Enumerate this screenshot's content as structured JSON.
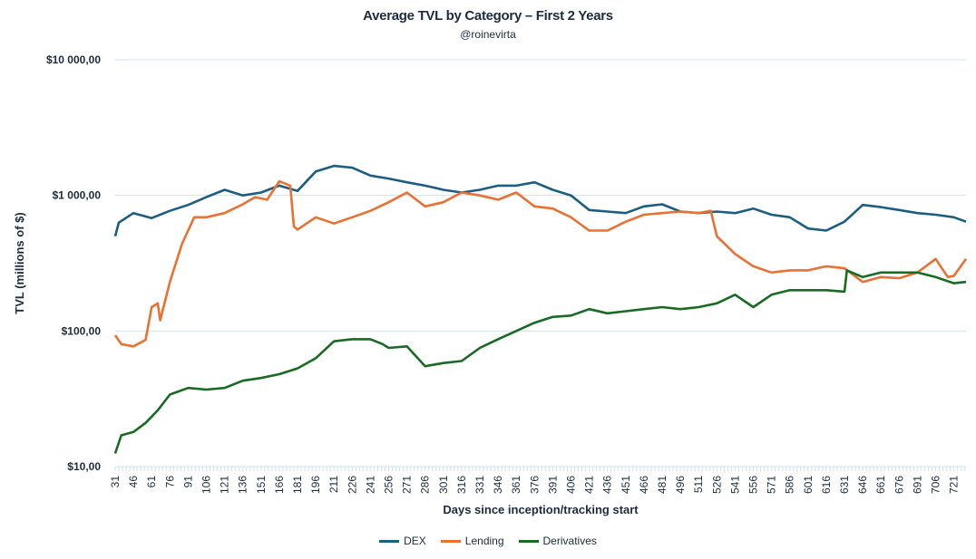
{
  "chart_data": {
    "type": "line",
    "title": "Average TVL by Category – First 2 Years",
    "subtitle": "@roinevirta",
    "xlabel": "Days since inception/tracking start",
    "ylabel": "TVL (millions of $)",
    "yscale": "log",
    "ylim": [
      10,
      10000
    ],
    "xlim": [
      31,
      731
    ],
    "y_ticks": [
      {
        "v": 10000,
        "label": "$10 000,00"
      },
      {
        "v": 1000,
        "label": "$1 000,00"
      },
      {
        "v": 100,
        "label": "$100,00"
      },
      {
        "v": 10,
        "label": "$10,00"
      }
    ],
    "x_ticks": [
      31,
      46,
      61,
      76,
      91,
      106,
      121,
      136,
      151,
      166,
      181,
      196,
      211,
      226,
      241,
      256,
      271,
      286,
      301,
      316,
      331,
      346,
      361,
      376,
      391,
      406,
      421,
      436,
      451,
      466,
      481,
      496,
      511,
      526,
      541,
      556,
      571,
      586,
      601,
      616,
      631,
      646,
      661,
      676,
      691,
      706,
      721
    ],
    "grid": "horizontal",
    "legend": "bottom",
    "series": [
      {
        "name": "DEX",
        "color": "#1b5e82",
        "points": [
          [
            31,
            500
          ],
          [
            34,
            630
          ],
          [
            46,
            740
          ],
          [
            61,
            680
          ],
          [
            76,
            770
          ],
          [
            91,
            850
          ],
          [
            106,
            970
          ],
          [
            121,
            1100
          ],
          [
            136,
            1000
          ],
          [
            151,
            1050
          ],
          [
            166,
            1180
          ],
          [
            181,
            1080
          ],
          [
            196,
            1500
          ],
          [
            211,
            1650
          ],
          [
            226,
            1600
          ],
          [
            241,
            1400
          ],
          [
            256,
            1330
          ],
          [
            271,
            1250
          ],
          [
            286,
            1180
          ],
          [
            301,
            1100
          ],
          [
            316,
            1050
          ],
          [
            331,
            1100
          ],
          [
            346,
            1180
          ],
          [
            361,
            1180
          ],
          [
            376,
            1250
          ],
          [
            391,
            1100
          ],
          [
            406,
            1000
          ],
          [
            421,
            780
          ],
          [
            436,
            760
          ],
          [
            451,
            740
          ],
          [
            466,
            830
          ],
          [
            481,
            860
          ],
          [
            496,
            760
          ],
          [
            511,
            740
          ],
          [
            526,
            760
          ],
          [
            541,
            740
          ],
          [
            556,
            800
          ],
          [
            571,
            720
          ],
          [
            586,
            690
          ],
          [
            601,
            570
          ],
          [
            616,
            550
          ],
          [
            631,
            640
          ],
          [
            646,
            850
          ],
          [
            661,
            820
          ],
          [
            676,
            780
          ],
          [
            691,
            740
          ],
          [
            706,
            720
          ],
          [
            721,
            690
          ],
          [
            731,
            640
          ]
        ]
      },
      {
        "name": "Lending",
        "color": "#e97132",
        "points": [
          [
            31,
            93
          ],
          [
            36,
            80
          ],
          [
            46,
            77
          ],
          [
            56,
            86
          ],
          [
            61,
            150
          ],
          [
            66,
            160
          ],
          [
            68,
            120
          ],
          [
            76,
            230
          ],
          [
            86,
            440
          ],
          [
            91,
            550
          ],
          [
            96,
            690
          ],
          [
            106,
            690
          ],
          [
            121,
            740
          ],
          [
            136,
            860
          ],
          [
            146,
            970
          ],
          [
            156,
            930
          ],
          [
            166,
            1270
          ],
          [
            175,
            1180
          ],
          [
            178,
            590
          ],
          [
            181,
            560
          ],
          [
            196,
            690
          ],
          [
            211,
            620
          ],
          [
            226,
            690
          ],
          [
            241,
            770
          ],
          [
            256,
            890
          ],
          [
            271,
            1050
          ],
          [
            286,
            830
          ],
          [
            301,
            890
          ],
          [
            316,
            1050
          ],
          [
            331,
            1000
          ],
          [
            346,
            930
          ],
          [
            361,
            1050
          ],
          [
            376,
            830
          ],
          [
            391,
            800
          ],
          [
            406,
            690
          ],
          [
            421,
            550
          ],
          [
            436,
            550
          ],
          [
            451,
            640
          ],
          [
            466,
            720
          ],
          [
            481,
            740
          ],
          [
            496,
            760
          ],
          [
            511,
            740
          ],
          [
            521,
            770
          ],
          [
            526,
            500
          ],
          [
            541,
            370
          ],
          [
            556,
            300
          ],
          [
            571,
            270
          ],
          [
            586,
            280
          ],
          [
            601,
            280
          ],
          [
            616,
            300
          ],
          [
            631,
            290
          ],
          [
            646,
            230
          ],
          [
            661,
            250
          ],
          [
            676,
            245
          ],
          [
            691,
            270
          ],
          [
            706,
            340
          ],
          [
            716,
            250
          ],
          [
            721,
            255
          ],
          [
            731,
            340
          ]
        ]
      },
      {
        "name": "Derivatives",
        "color": "#196b24",
        "points": [
          [
            31,
            12.5
          ],
          [
            36,
            17
          ],
          [
            46,
            18
          ],
          [
            56,
            21
          ],
          [
            66,
            26
          ],
          [
            76,
            34
          ],
          [
            91,
            38
          ],
          [
            106,
            37
          ],
          [
            121,
            38
          ],
          [
            136,
            43
          ],
          [
            151,
            45
          ],
          [
            166,
            48
          ],
          [
            181,
            53
          ],
          [
            196,
            63
          ],
          [
            211,
            84
          ],
          [
            226,
            87
          ],
          [
            241,
            87
          ],
          [
            251,
            80
          ],
          [
            256,
            75
          ],
          [
            271,
            77
          ],
          [
            286,
            55
          ],
          [
            301,
            58
          ],
          [
            316,
            60
          ],
          [
            331,
            75
          ],
          [
            346,
            87
          ],
          [
            361,
            100
          ],
          [
            376,
            115
          ],
          [
            391,
            127
          ],
          [
            406,
            130
          ],
          [
            421,
            145
          ],
          [
            436,
            135
          ],
          [
            451,
            140
          ],
          [
            466,
            145
          ],
          [
            481,
            150
          ],
          [
            496,
            145
          ],
          [
            511,
            150
          ],
          [
            526,
            160
          ],
          [
            541,
            185
          ],
          [
            556,
            150
          ],
          [
            571,
            185
          ],
          [
            586,
            200
          ],
          [
            601,
            200
          ],
          [
            616,
            200
          ],
          [
            631,
            195
          ],
          [
            633,
            280
          ],
          [
            646,
            250
          ],
          [
            661,
            270
          ],
          [
            676,
            270
          ],
          [
            691,
            270
          ],
          [
            706,
            250
          ],
          [
            721,
            225
          ],
          [
            731,
            230
          ]
        ]
      }
    ]
  }
}
